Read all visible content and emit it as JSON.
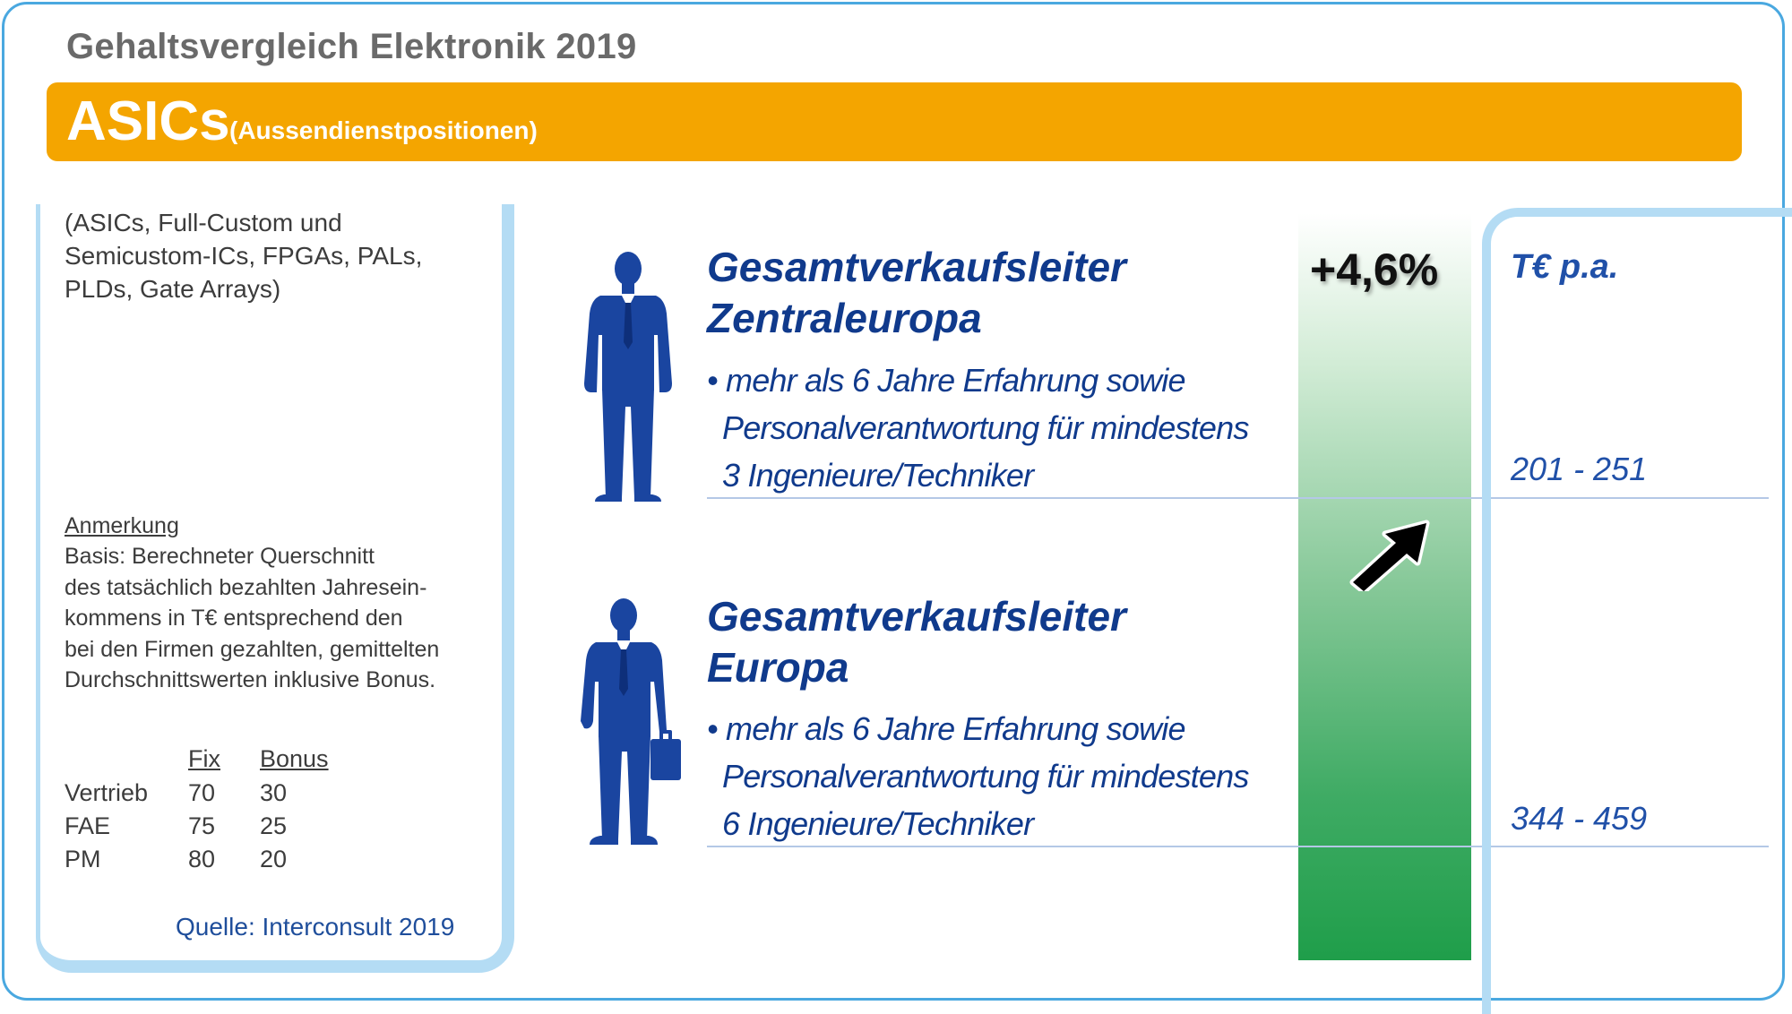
{
  "header": {
    "title": "Gehaltsvergleich Elektronik 2019",
    "banner_title": "ASICs",
    "banner_subtitle": "(Aussendienstpositionen)"
  },
  "sidebar": {
    "scope_lines": [
      "(ASICs, Full-Custom und",
      "Semicustom-ICs, FPGAs, PALs,",
      "PLDs, Gate Arrays)"
    ],
    "note_heading": "Anmerkung",
    "note_lines": [
      "Basis: Berechneter Querschnitt",
      "des tatsächlich bezahlten Jahresein-",
      "kommens in T€ entsprechend den",
      "bei den Firmen gezahlten, gemittelten",
      "Durchschnittswerten inklusive Bonus."
    ],
    "table": {
      "headers": [
        "Fix",
        "Bonus"
      ],
      "rows": [
        {
          "label": "Vertrieb",
          "fix": "70",
          "bonus": "30"
        },
        {
          "label": "FAE",
          "fix": "75",
          "bonus": "25"
        },
        {
          "label": "PM",
          "fix": "80",
          "bonus": "20"
        }
      ]
    },
    "source": "Quelle: Interconsult 2019"
  },
  "positions": [
    {
      "title_lines": [
        "Gesamtverkaufsleiter",
        "Zentraleuropa"
      ],
      "bullet_lines": [
        "• mehr als 6 Jahre Erfahrung sowie",
        "Personalverantwortung für mindestens",
        "3 Ingenieure/Techniker"
      ],
      "salary": "201 - 251"
    },
    {
      "title_lines": [
        "Gesamtverkaufsleiter",
        "Europa"
      ],
      "bullet_lines": [
        "• mehr als 6 Jahre Erfahrung sowie",
        "Personalverantwortung für mindestens",
        "6 Ingenieure/Techniker"
      ],
      "salary": "344 - 459"
    }
  ],
  "growth": {
    "label": "+4,6%",
    "icon": "arrow-up-right-icon"
  },
  "unit_label": "T€ p.a.",
  "colors": {
    "banner": "#f4a500",
    "title_blue": "#103a8c",
    "frame_blue": "#4aa8e0",
    "panel_blue": "#b4dcf4",
    "growth_green": "#1f9e4a"
  }
}
